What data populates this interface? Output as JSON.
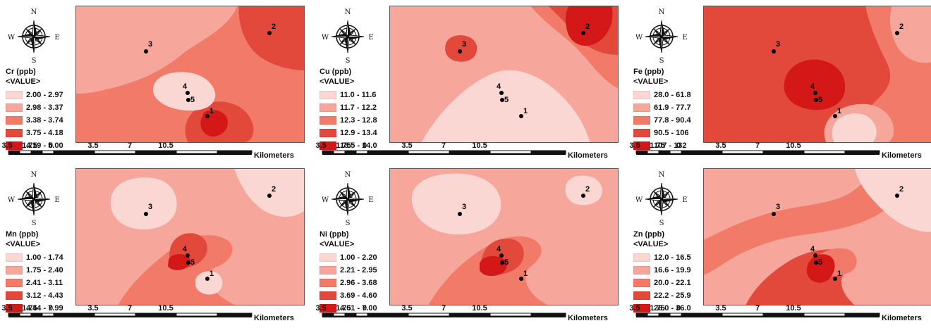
{
  "colors": {
    "c1": "#fbd7d3",
    "c2": "#f6a69a",
    "c3": "#f17a69",
    "c4": "#e2493b",
    "c5": "#d41818"
  },
  "compass": {
    "n": "N",
    "s": "S",
    "e": "E",
    "w": "W",
    "icon": "compass-rose-icon"
  },
  "scale": {
    "ticks": [
      "3.5",
      "1.75",
      "0",
      "3.5",
      "7",
      "10.5"
    ],
    "unit": "Kilometers"
  },
  "points": [
    "1",
    "2",
    "3",
    "4",
    "5"
  ],
  "panels": [
    {
      "title": "Cr (ppb)",
      "value_label": "<VALUE>",
      "classes": [
        "2.00 - 2.97",
        "2.98 - 3.37",
        "3.38 - 3.74",
        "3.75 - 4.18",
        "4.19 - 5.00"
      ]
    },
    {
      "title": "Cu (ppb)",
      "value_label": "<VALUE>",
      "classes": [
        "11.0 - 11.6",
        "11.7 - 12.2",
        "12.3 - 12.8",
        "12.9 - 13.4",
        "13.5 - 14.0"
      ]
    },
    {
      "title": "Fe (ppb)",
      "value_label": "<VALUE>",
      "classes": [
        "28.0 - 61.8",
        "61.9 - 77.7",
        "77.8 - 90.4",
        "90.5 - 106",
        "107 - 132"
      ]
    },
    {
      "title": "Mn (ppb)",
      "value_label": "<VALUE>",
      "classes": [
        "1.00 - 1.74",
        "1.75 - 2.40",
        "2.41 - 3.11",
        "3.12 - 4.43",
        "4.44 - 7.99"
      ]
    },
    {
      "title": "Ni (ppb)",
      "value_label": "<VALUE>",
      "classes": [
        "1.00 - 2.20",
        "2.21 - 2.95",
        "2.96 - 3.68",
        "3.69 - 4.60",
        "4.61 - 7.00"
      ]
    },
    {
      "title": "Zn (ppb)",
      "value_label": "<VALUE>",
      "classes": [
        "12.0 - 16.5",
        "16.6 - 19.9",
        "20.0 - 22.1",
        "22.2 - 25.9",
        "26.0 - 36.0"
      ]
    }
  ]
}
